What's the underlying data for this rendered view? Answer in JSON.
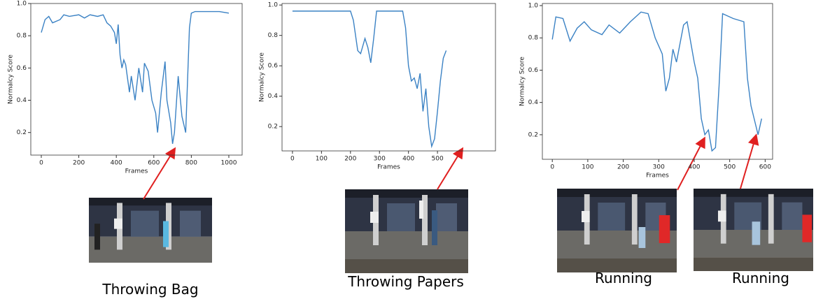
{
  "chart_data": [
    {
      "type": "line",
      "xlabel": "Frames",
      "ylabel": "Normalcy Score",
      "color": "#3b82c4",
      "x": [
        0,
        20,
        40,
        60,
        100,
        120,
        150,
        200,
        230,
        260,
        300,
        330,
        350,
        370,
        390,
        400,
        410,
        420,
        430,
        440,
        450,
        470,
        480,
        500,
        520,
        540,
        550,
        570,
        590,
        610,
        620,
        640,
        660,
        670,
        690,
        700,
        710,
        730,
        750,
        770,
        790,
        800,
        820,
        900,
        950,
        1000
      ],
      "values": [
        0.82,
        0.9,
        0.92,
        0.88,
        0.9,
        0.93,
        0.92,
        0.93,
        0.91,
        0.93,
        0.92,
        0.93,
        0.88,
        0.86,
        0.82,
        0.75,
        0.87,
        0.68,
        0.6,
        0.65,
        0.62,
        0.45,
        0.55,
        0.4,
        0.6,
        0.45,
        0.63,
        0.58,
        0.4,
        0.32,
        0.2,
        0.45,
        0.64,
        0.4,
        0.26,
        0.13,
        0.2,
        0.55,
        0.3,
        0.2,
        0.85,
        0.94,
        0.95,
        0.95,
        0.95,
        0.94
      ],
      "xlim": [
        -56,
        1071
      ],
      "ylim": [
        0.06,
        1.0
      ],
      "xticks": [
        0,
        200,
        400,
        600,
        800,
        1000
      ],
      "yticks": [
        0.2,
        0.4,
        0.6,
        0.8,
        {
          "value": 1,
          "label": "1.0"
        }
      ]
    },
    {
      "type": "line",
      "xlabel": "Frames",
      "ylabel": "Normalcy Score",
      "color": "#3b82c4",
      "x": [
        0,
        50,
        100,
        150,
        200,
        210,
        225,
        235,
        250,
        260,
        270,
        280,
        290,
        350,
        380,
        390,
        400,
        410,
        420,
        430,
        440,
        450,
        460,
        470,
        480,
        490,
        500,
        510,
        520,
        530
      ],
      "values": [
        0.96,
        0.96,
        0.96,
        0.96,
        0.96,
        0.9,
        0.7,
        0.68,
        0.78,
        0.72,
        0.62,
        0.78,
        0.96,
        0.96,
        0.96,
        0.85,
        0.6,
        0.5,
        0.52,
        0.45,
        0.55,
        0.3,
        0.45,
        0.2,
        0.07,
        0.12,
        0.3,
        0.5,
        0.65,
        0.7
      ],
      "xlim": [
        -36,
        700
      ],
      "ylim": [
        0.04,
        1.01
      ],
      "xticks": [
        0,
        100,
        200,
        300,
        400,
        500
      ],
      "yticks": [
        0.2,
        0.4,
        0.6,
        0.8,
        {
          "value": 1,
          "label": "1.0"
        }
      ]
    },
    {
      "type": "line",
      "xlabel": "Frames",
      "ylabel": "Normalcy Score",
      "color": "#3b82c4",
      "x": [
        0,
        10,
        30,
        50,
        70,
        90,
        110,
        140,
        160,
        190,
        220,
        250,
        270,
        290,
        310,
        320,
        330,
        340,
        350,
        370,
        380,
        400,
        410,
        420,
        430,
        440,
        450,
        460,
        470,
        480,
        490,
        510,
        540,
        550,
        560,
        580,
        590
      ],
      "values": [
        0.79,
        0.93,
        0.92,
        0.78,
        0.86,
        0.9,
        0.85,
        0.82,
        0.88,
        0.83,
        0.9,
        0.96,
        0.95,
        0.8,
        0.7,
        0.47,
        0.55,
        0.73,
        0.65,
        0.88,
        0.9,
        0.65,
        0.55,
        0.3,
        0.2,
        0.23,
        0.1,
        0.12,
        0.5,
        0.95,
        0.94,
        0.92,
        0.9,
        0.55,
        0.38,
        0.2,
        0.3
      ],
      "xlim": [
        -28,
        621
      ],
      "ylim": [
        0.048,
        1.013
      ],
      "xticks": [
        0,
        100,
        200,
        300,
        400,
        500,
        600
      ],
      "yticks": [
        0.2,
        0.4,
        0.6,
        0.8,
        {
          "value": 1,
          "label": "1.0"
        }
      ]
    }
  ],
  "captions": [
    "Throwing Bag",
    "Throwing Papers",
    "Running",
    "Running"
  ]
}
